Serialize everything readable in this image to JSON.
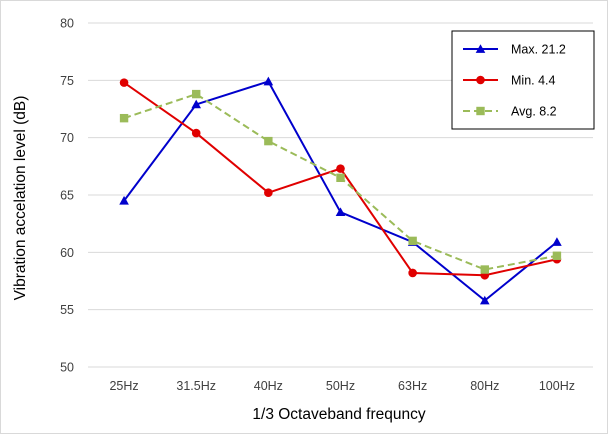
{
  "chart_data": {
    "type": "line",
    "xlabel": "1/3 Octaveband frequncy",
    "ylabel": "Vibration accelation level (dB)",
    "categories": [
      "25Hz",
      "31.5Hz",
      "40Hz",
      "50Hz",
      "63Hz",
      "80Hz",
      "100Hz"
    ],
    "ylim": [
      50,
      80
    ],
    "yticks": [
      50,
      55,
      60,
      65,
      70,
      75,
      80
    ],
    "grid": "horizontal",
    "legend_position": "top-right",
    "series": [
      {
        "name": "Max. 21.2",
        "color": "#0000cc",
        "marker": "triangle",
        "dash": "solid",
        "values": [
          64.5,
          72.9,
          74.9,
          63.5,
          60.9,
          55.8,
          60.9
        ]
      },
      {
        "name": "Min. 4.4",
        "color": "#e00000",
        "marker": "circle",
        "dash": "solid",
        "values": [
          74.8,
          70.4,
          65.2,
          67.3,
          58.2,
          58.0,
          59.4
        ]
      },
      {
        "name": "Avg. 8.2",
        "color": "#9bbb59",
        "marker": "square",
        "dash": "dashed",
        "values": [
          71.7,
          73.8,
          69.7,
          66.5,
          61.0,
          58.5,
          59.7
        ]
      }
    ]
  }
}
